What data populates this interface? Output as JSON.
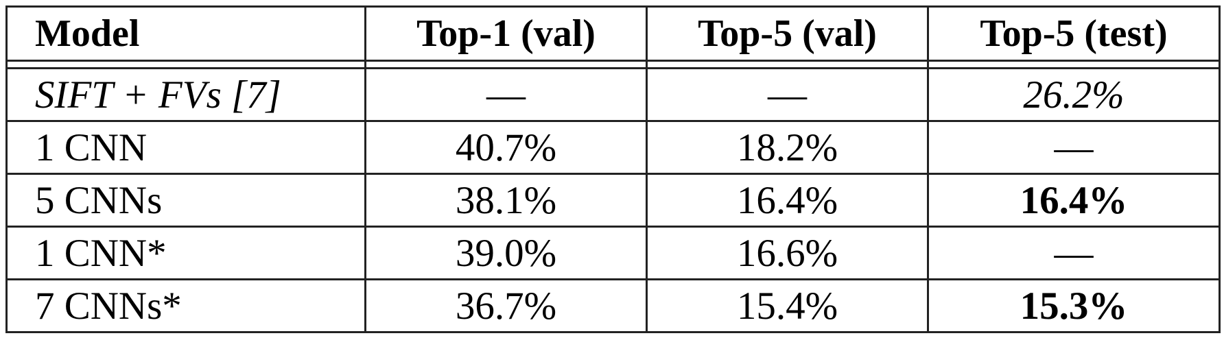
{
  "table": {
    "header": [
      "Model",
      "Top-1 (val)",
      "Top-5 (val)",
      "Top-5 (test)"
    ],
    "rows": [
      [
        "SIFT + FVs [7]",
        "—",
        "—",
        "26.2%"
      ],
      [
        "1 CNN",
        "40.7%",
        "18.2%",
        "—"
      ],
      [
        "5 CNNs",
        "38.1%",
        "16.4%",
        "16.4%"
      ],
      [
        "1 CNN*",
        "39.0%",
        "16.6%",
        "—"
      ],
      [
        "7 CNNs*",
        "36.7%",
        "15.4%",
        "15.3%"
      ]
    ]
  }
}
